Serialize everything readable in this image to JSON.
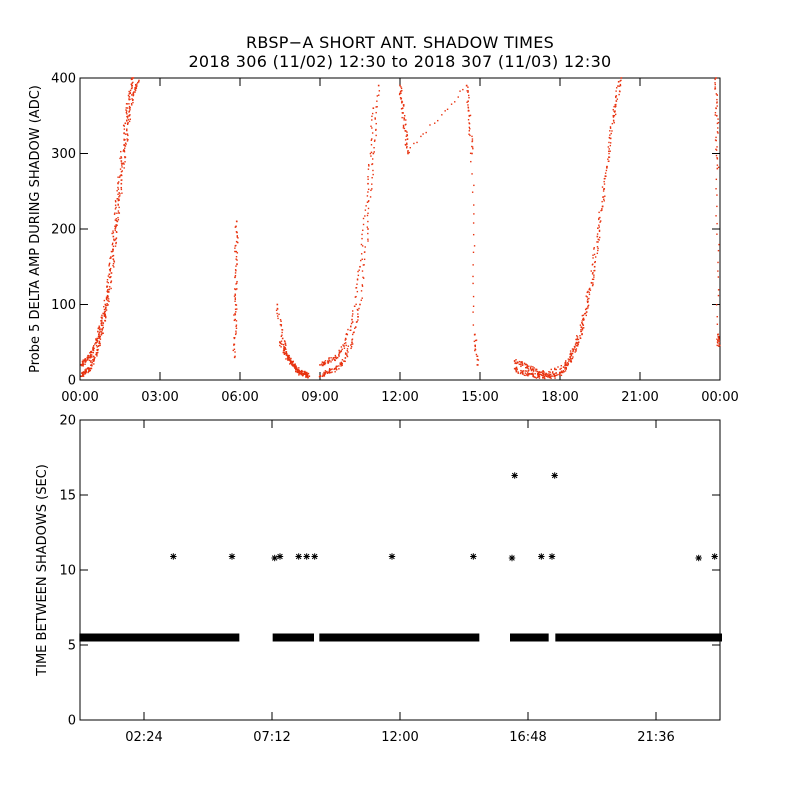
{
  "title": "RBSP−A SHORT ANT. SHADOW TIMES",
  "subtitle": "2018 306 (11/02) 12:30 to 2018 307 (11/03) 12:30",
  "colors": {
    "top_points": "#e8320f",
    "bottom_points": "#000000",
    "axis": "#000000"
  },
  "chart_data": [
    {
      "type": "scatter",
      "ylabel": "Probe 5 DELTA AMP DURING SHADOW (ADC)",
      "xlabel": "",
      "x_unit": "hours",
      "xlim": [
        0,
        24
      ],
      "ylim": [
        0,
        400
      ],
      "xticks": [
        0,
        3,
        6,
        9,
        12,
        15,
        18,
        21,
        24
      ],
      "xtick_labels": [
        "00:00",
        "03:00",
        "06:00",
        "09:00",
        "12:00",
        "15:00",
        "18:00",
        "21:00",
        "00:00"
      ],
      "yticks": [
        0,
        100,
        200,
        300,
        400
      ],
      "ytick_labels": [
        "0",
        "100",
        "200",
        "300",
        "400"
      ],
      "marker": "dot",
      "color": "#e8320f",
      "series": [
        {
          "x": [
            0.05,
            0.2,
            0.35,
            0.5,
            0.65,
            0.8,
            0.95,
            1.1,
            1.25,
            1.4,
            1.55,
            1.7,
            1.85,
            2.0,
            2.2
          ],
          "y": [
            5,
            10,
            15,
            25,
            40,
            60,
            85,
            120,
            160,
            210,
            260,
            310,
            350,
            380,
            395
          ]
        },
        {
          "x": [
            0.05,
            0.2,
            0.35,
            0.5,
            0.65,
            0.8,
            0.95,
            1.1,
            1.25,
            1.4,
            1.55,
            1.7,
            1.85,
            2.0
          ],
          "y": [
            20,
            25,
            30,
            40,
            55,
            75,
            100,
            140,
            190,
            240,
            290,
            340,
            375,
            400
          ]
        },
        {
          "x": [
            5.8,
            5.82,
            5.84,
            5.86,
            5.88
          ],
          "y": [
            30,
            80,
            120,
            170,
            210
          ]
        },
        {
          "x": [
            7.4,
            7.6,
            7.8,
            8.0,
            8.2,
            8.4,
            8.6
          ],
          "y": [
            100,
            55,
            30,
            20,
            10,
            8,
            5
          ]
        },
        {
          "x": [
            7.5,
            7.7,
            7.9,
            8.1,
            8.3,
            8.5
          ],
          "y": [
            50,
            35,
            25,
            15,
            10,
            6
          ]
        },
        {
          "x": [
            9.0,
            9.3,
            9.6,
            9.9,
            10.2,
            10.5,
            10.8,
            11.0,
            11.2
          ],
          "y": [
            5,
            10,
            15,
            25,
            50,
            100,
            200,
            300,
            390
          ]
        },
        {
          "x": [
            9.0,
            9.3,
            9.6,
            9.9,
            10.2,
            10.5,
            10.8,
            11.0
          ],
          "y": [
            20,
            25,
            30,
            45,
            80,
            150,
            260,
            360
          ]
        },
        {
          "x": [
            12.0,
            12.1,
            12.2,
            12.3,
            14.5,
            14.6,
            14.7,
            14.8,
            14.9
          ],
          "y": [
            390,
            360,
            330,
            300,
            390,
            350,
            300,
            60,
            20
          ]
        },
        {
          "x": [
            16.3,
            16.6,
            16.9,
            17.2,
            17.5,
            17.8,
            18.1,
            18.4,
            18.7,
            19.0,
            19.3,
            19.6,
            19.9,
            20.2
          ],
          "y": [
            15,
            10,
            8,
            5,
            5,
            5,
            10,
            25,
            50,
            90,
            150,
            230,
            320,
            395
          ]
        },
        {
          "x": [
            16.3,
            16.6,
            16.9,
            17.2,
            17.5,
            18.2,
            18.5,
            18.8,
            19.1,
            19.4,
            19.7,
            20.0,
            20.3
          ],
          "y": [
            25,
            20,
            15,
            10,
            8,
            20,
            40,
            70,
            120,
            190,
            270,
            350,
            400
          ]
        },
        {
          "x": [
            23.85,
            23.88,
            23.9,
            23.92,
            23.95
          ],
          "y": [
            400,
            350,
            280,
            60,
            45
          ]
        }
      ]
    },
    {
      "type": "scatter",
      "ylabel": "TIME BETWEEN SHADOWS (SEC)",
      "xlabel": "",
      "x_unit": "hours",
      "xlim": [
        0,
        24
      ],
      "ylim": [
        0,
        20
      ],
      "xticks": [
        2.4,
        7.2,
        12.0,
        16.8,
        21.6
      ],
      "xtick_labels": [
        "02:24",
        "07:12",
        "12:00",
        "16:48",
        "21:36"
      ],
      "yticks": [
        0,
        5,
        10,
        15,
        20
      ],
      "ytick_labels": [
        "0",
        "5",
        "10",
        "15",
        "20"
      ],
      "marker": "asterisk",
      "color": "#000000",
      "baseline": {
        "y": 5.5,
        "segments": [
          [
            0.05,
            5.9
          ],
          [
            7.3,
            8.7
          ],
          [
            9.05,
            14.9
          ],
          [
            16.2,
            17.5
          ],
          [
            17.9,
            24
          ]
        ]
      },
      "outliers": {
        "x": [
          3.5,
          5.7,
          7.3,
          7.5,
          8.2,
          8.5,
          8.8,
          11.7,
          14.75,
          16.2,
          16.3,
          17.3,
          17.7,
          17.8,
          23.2,
          23.8
        ],
        "y": [
          10.9,
          10.9,
          10.8,
          10.9,
          10.9,
          10.9,
          10.9,
          10.9,
          10.9,
          10.8,
          16.3,
          10.9,
          10.9,
          16.3,
          10.8,
          10.9
        ]
      }
    }
  ]
}
